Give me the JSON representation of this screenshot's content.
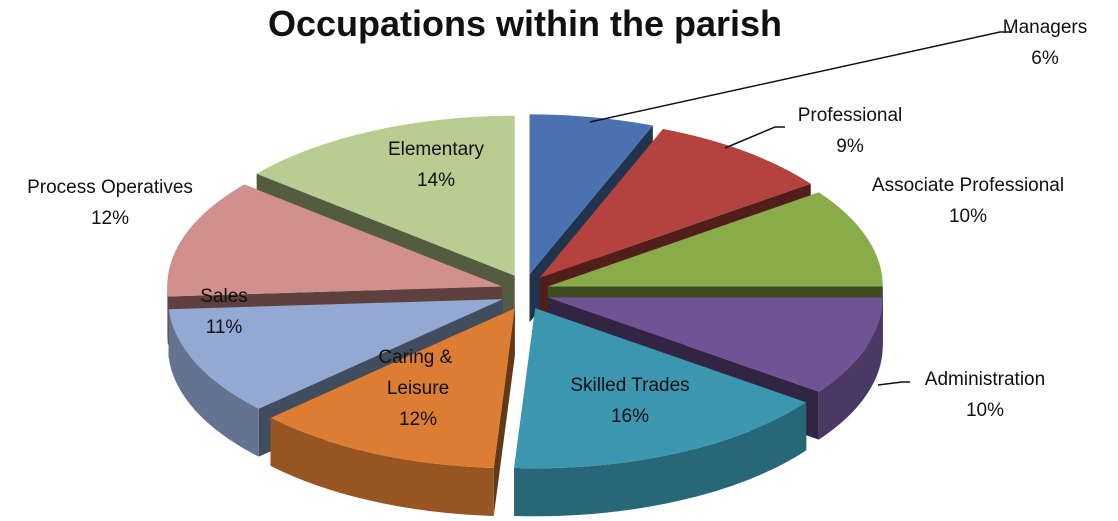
{
  "chart_data": {
    "type": "pie3d",
    "title": "Occupations within the parish",
    "categories": [
      "Managers",
      "Professional",
      "Associate Professional",
      "Administration",
      "Skilled Trades",
      "Caring & Leisure",
      "Sales",
      "Process Operatives",
      "Elementary"
    ],
    "values": [
      6,
      9,
      10,
      10,
      16,
      12,
      11,
      12,
      14
    ],
    "value_labels": [
      "6%",
      "9%",
      "10%",
      "10%",
      "16%",
      "12%",
      "11%",
      "12%",
      "14%"
    ],
    "colors": [
      "#4a72b0",
      "#b4433f",
      "#8aab4a",
      "#6f5395",
      "#3b97b0",
      "#dd7d33",
      "#93a9d4",
      "#d18f8d",
      "#b9cc91"
    ]
  }
}
